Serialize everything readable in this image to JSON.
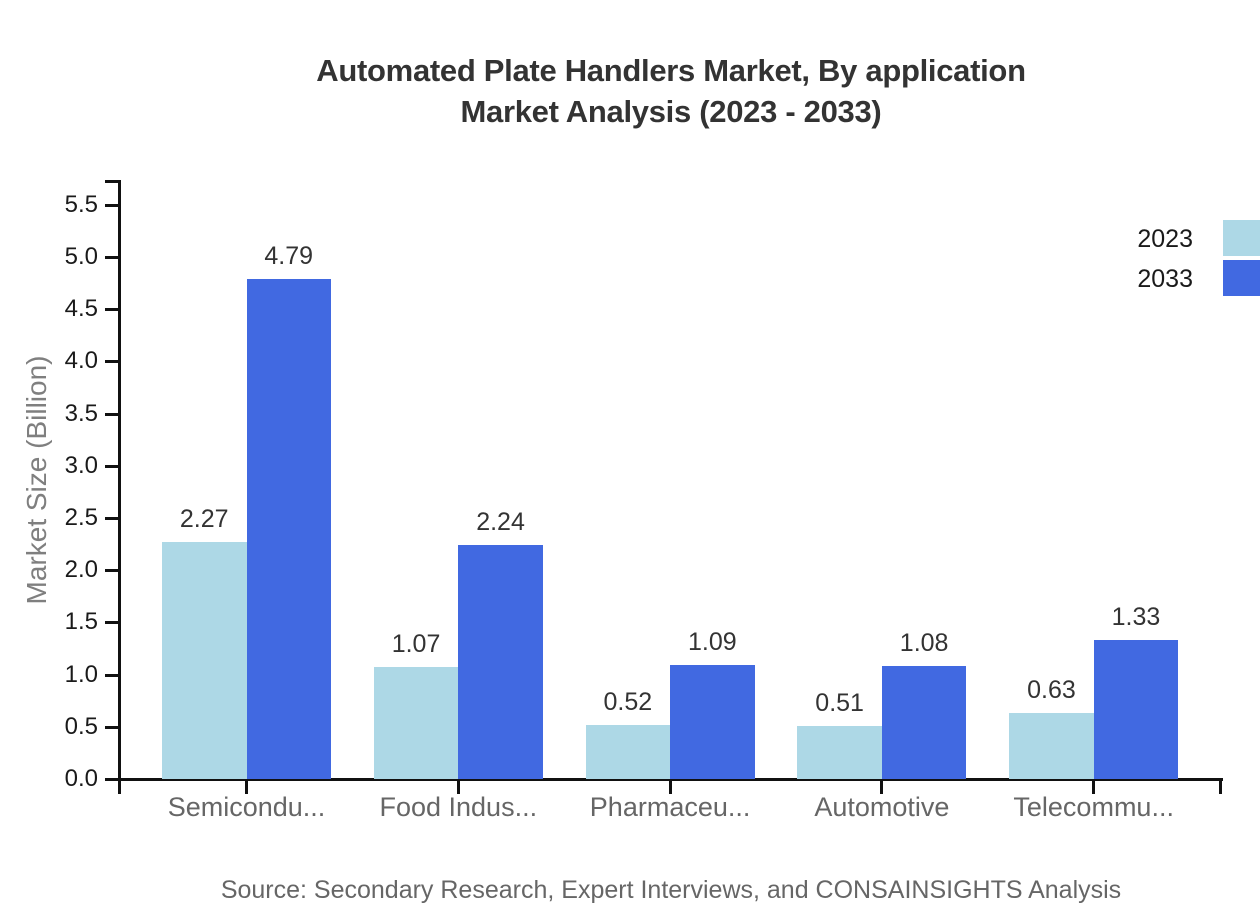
{
  "title": {
    "line1": "Automated Plate Handlers Market, By application",
    "line2": "Market Analysis (2023 - 2033)"
  },
  "y_axis": {
    "label": "Market Size (Billion)",
    "ticks": [
      "0.0",
      "0.5",
      "1.0",
      "1.5",
      "2.0",
      "2.5",
      "3.0",
      "3.5",
      "4.0",
      "4.5",
      "5.0",
      "5.5"
    ]
  },
  "legend": {
    "items": [
      {
        "label": "2023",
        "color": "#ADD8E6"
      },
      {
        "label": "2033",
        "color": "#4169E1"
      }
    ]
  },
  "source": "Source: Secondary Research, Expert Interviews, and CONSAINSIGHTS Analysis",
  "chart_data": {
    "type": "bar",
    "title": "Automated Plate Handlers Market, By application Market Analysis (2023 - 2033)",
    "categories": [
      "Semicondu...",
      "Food Indus...",
      "Pharmaceu...",
      "Automotive",
      "Telecommu..."
    ],
    "series": [
      {
        "name": "2023",
        "color": "#ADD8E6",
        "values": [
          2.27,
          1.07,
          0.52,
          0.51,
          0.63
        ]
      },
      {
        "name": "2033",
        "color": "#4169E1",
        "values": [
          4.79,
          2.24,
          1.09,
          1.08,
          1.33
        ]
      }
    ],
    "xlabel": "",
    "ylabel": "Market Size (Billion)",
    "ylim": [
      0,
      5.5
    ],
    "ytick_step": 0.5,
    "grid": false,
    "legend_position": "top-right",
    "value_labels": true,
    "value_label_format": "2-decimals"
  }
}
